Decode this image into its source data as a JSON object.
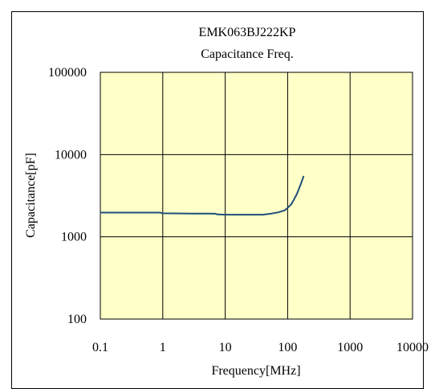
{
  "chart_data": {
    "type": "line",
    "title": "EMK063BJ222KP",
    "subtitle": "Capacitance Freq.",
    "xlabel": "Frequency[MHz]",
    "ylabel": "Capacitance[pF]",
    "x_scale": "log",
    "y_scale": "log",
    "xlim": [
      0.1,
      10000
    ],
    "ylim": [
      100,
      100000
    ],
    "x_ticks": [
      "0.1",
      "1",
      "10",
      "100",
      "1000",
      "10000"
    ],
    "y_ticks": [
      "100",
      "1000",
      "10000",
      "100000"
    ],
    "grid": true,
    "plot_background": "#ffffc8",
    "line_color": "#1f4e79",
    "series": [
      {
        "x": [
          0.1,
          0.5,
          0.9,
          1.0,
          3,
          7,
          7.5,
          10,
          20,
          40,
          45,
          55,
          70,
          90,
          100,
          115,
          125,
          140,
          155,
          170,
          180
        ],
        "y": [
          1970,
          1970,
          1970,
          1930,
          1920,
          1910,
          1870,
          1860,
          1860,
          1860,
          1880,
          1920,
          1980,
          2100,
          2250,
          2500,
          2800,
          3300,
          4000,
          4800,
          5500
        ]
      }
    ]
  }
}
